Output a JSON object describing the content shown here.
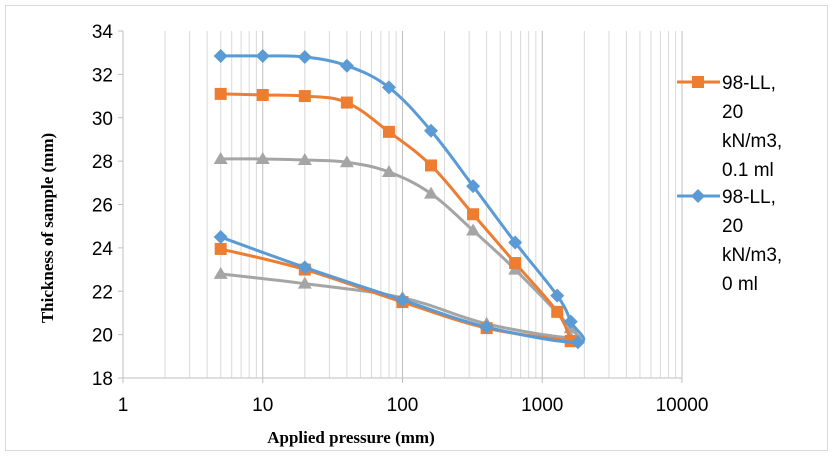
{
  "chart_data": {
    "type": "line",
    "xscale": "log",
    "xlim": [
      1,
      10000
    ],
    "ylim": [
      18,
      34
    ],
    "x_ticks": [
      "1",
      "10",
      "100",
      "1000",
      "10000"
    ],
    "y_ticks": [
      "18",
      "20",
      "22",
      "24",
      "26",
      "28",
      "30",
      "32",
      "34"
    ],
    "xlabel": "Applied pressure (mm)",
    "ylabel": "Thickness of sample (mm)",
    "grid": "vertical minor and major",
    "legend_position": "right",
    "series": [
      {
        "name": "98-LL, 20 kN/m3, 0.1 ml",
        "legend_lines": [
          "98-LL,",
          "20",
          "kN/m3,",
          "0.1 ml"
        ],
        "color": "#ED7D31",
        "marker": "square",
        "x": [
          5,
          10,
          20,
          40,
          80,
          160,
          320,
          640,
          1280,
          1600,
          1600,
          400,
          100,
          20,
          5
        ],
        "y": [
          31.1,
          31.05,
          31.0,
          30.7,
          29.35,
          27.8,
          25.55,
          23.3,
          21.05,
          19.7,
          19.7,
          20.3,
          21.5,
          23.0,
          23.95
        ]
      },
      {
        "name": "98-LL, 20 kN/m3, 0 ml",
        "legend_lines": [
          "98-LL,",
          "20",
          "kN/m3,",
          "0 ml"
        ],
        "color": "#5B9BD5",
        "marker": "diamond",
        "x": [
          5,
          10,
          20,
          40,
          80,
          160,
          320,
          640,
          1280,
          1600,
          1800,
          400,
          100,
          20,
          5
        ],
        "y": [
          32.85,
          32.85,
          32.8,
          32.4,
          31.4,
          29.4,
          26.85,
          24.25,
          21.8,
          20.6,
          19.65,
          20.35,
          21.6,
          23.1,
          24.5
        ]
      },
      {
        "name": "",
        "color": "#A5A5A5",
        "marker": "triangle",
        "x": [
          5,
          10,
          20,
          40,
          80,
          160,
          320,
          640,
          1600,
          1600,
          400,
          100,
          20,
          5
        ],
        "y": [
          28.1,
          28.1,
          28.05,
          27.95,
          27.5,
          26.5,
          24.8,
          23.0,
          20.3,
          19.85,
          20.5,
          21.7,
          22.35,
          22.8
        ]
      }
    ]
  }
}
